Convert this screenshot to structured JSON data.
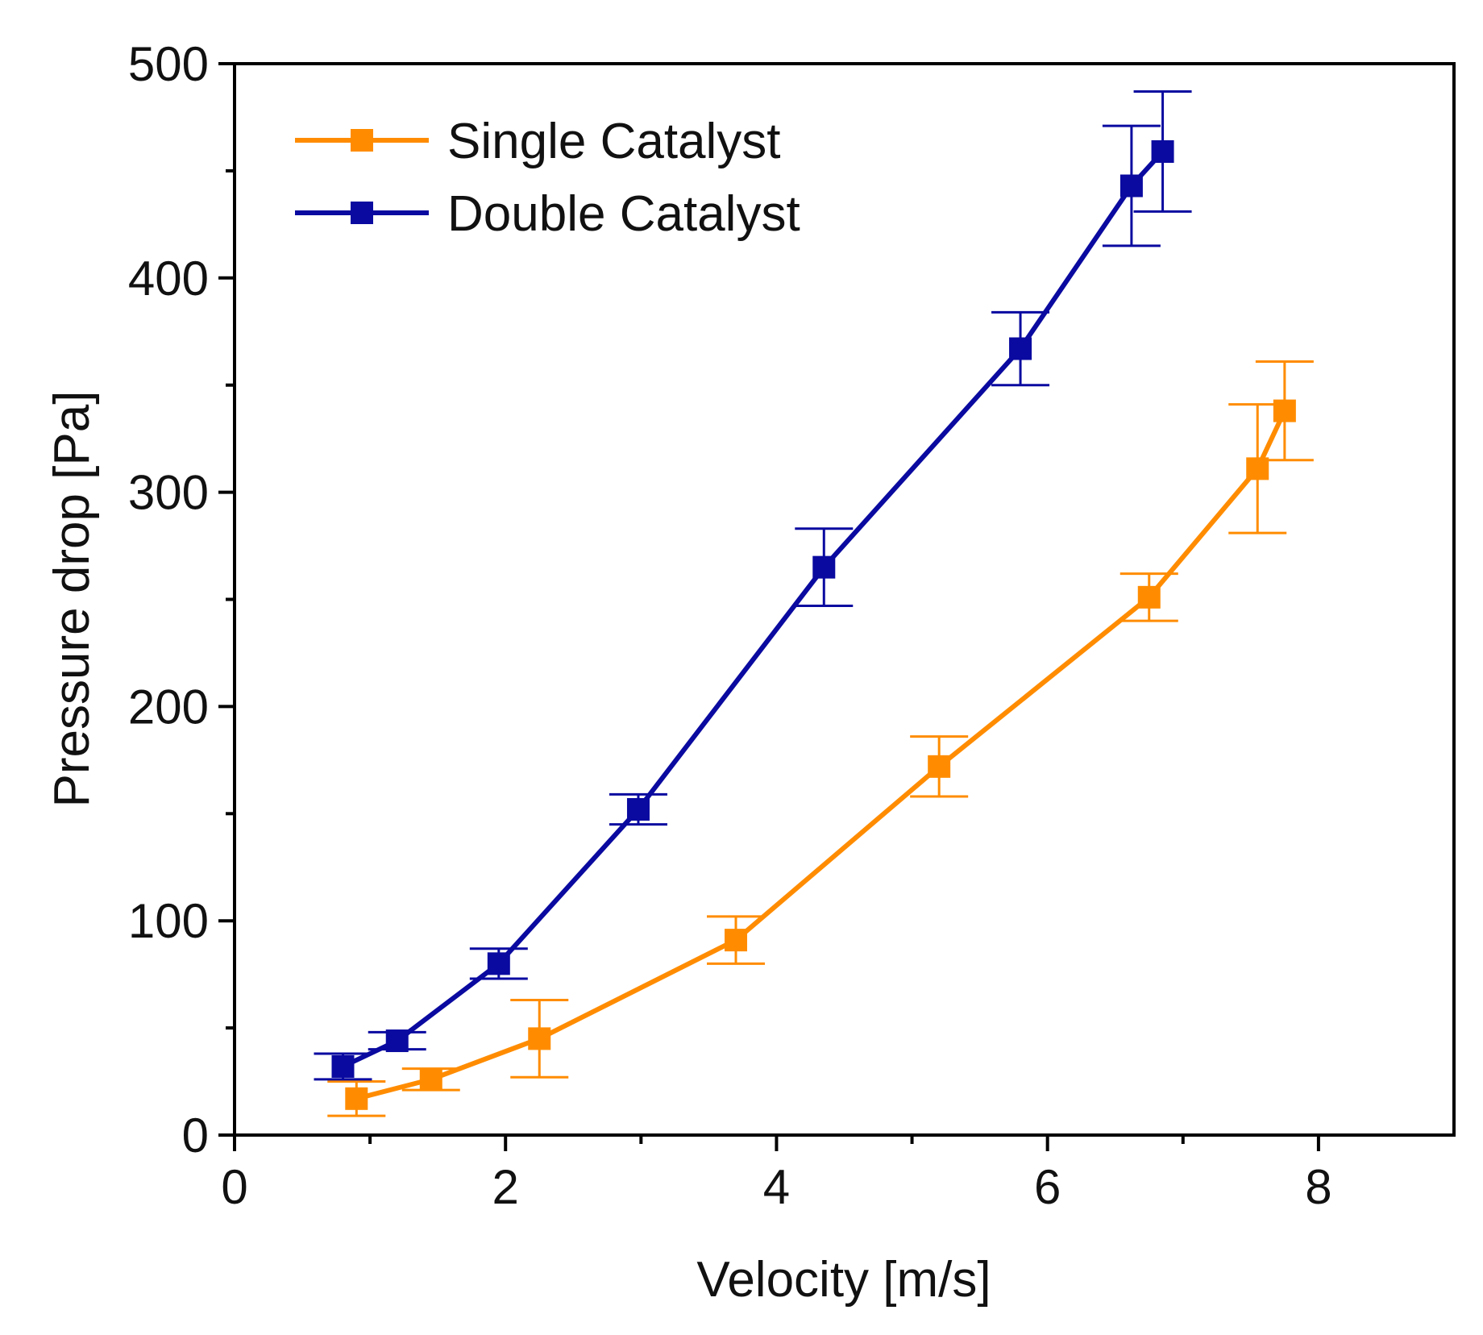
{
  "chart_data": {
    "type": "line",
    "title": "",
    "xlabel": "Velocity [m/s]",
    "ylabel": "Pressure drop [Pa]",
    "xlim": [
      0,
      9
    ],
    "ylim": [
      0,
      500
    ],
    "x_ticks": [
      0,
      2,
      4,
      6,
      8
    ],
    "y_ticks": [
      0,
      100,
      200,
      300,
      400,
      500
    ],
    "x_minor_ticks": [
      1,
      3,
      5,
      7
    ],
    "y_minor_ticks": [
      50,
      150,
      250,
      350,
      450
    ],
    "legend_position": "top-left",
    "series": [
      {
        "name": "Single Catalyst",
        "color": "#FF8C00",
        "marker": "square",
        "x": [
          0.9,
          1.45,
          2.25,
          3.7,
          5.2,
          6.75,
          7.55,
          7.75
        ],
        "y": [
          17,
          26,
          45,
          91,
          172,
          251,
          311,
          338
        ],
        "error": [
          8,
          5,
          18,
          11,
          14,
          11,
          30,
          23
        ]
      },
      {
        "name": "Double Catalyst",
        "color": "#0A0AA0",
        "marker": "square",
        "x": [
          0.8,
          1.2,
          1.95,
          2.98,
          4.35,
          5.8,
          6.62,
          6.85
        ],
        "y": [
          32,
          44,
          80,
          152,
          265,
          367,
          443,
          459
        ],
        "error": [
          6,
          4,
          7,
          7,
          18,
          17,
          28,
          28
        ]
      }
    ]
  }
}
